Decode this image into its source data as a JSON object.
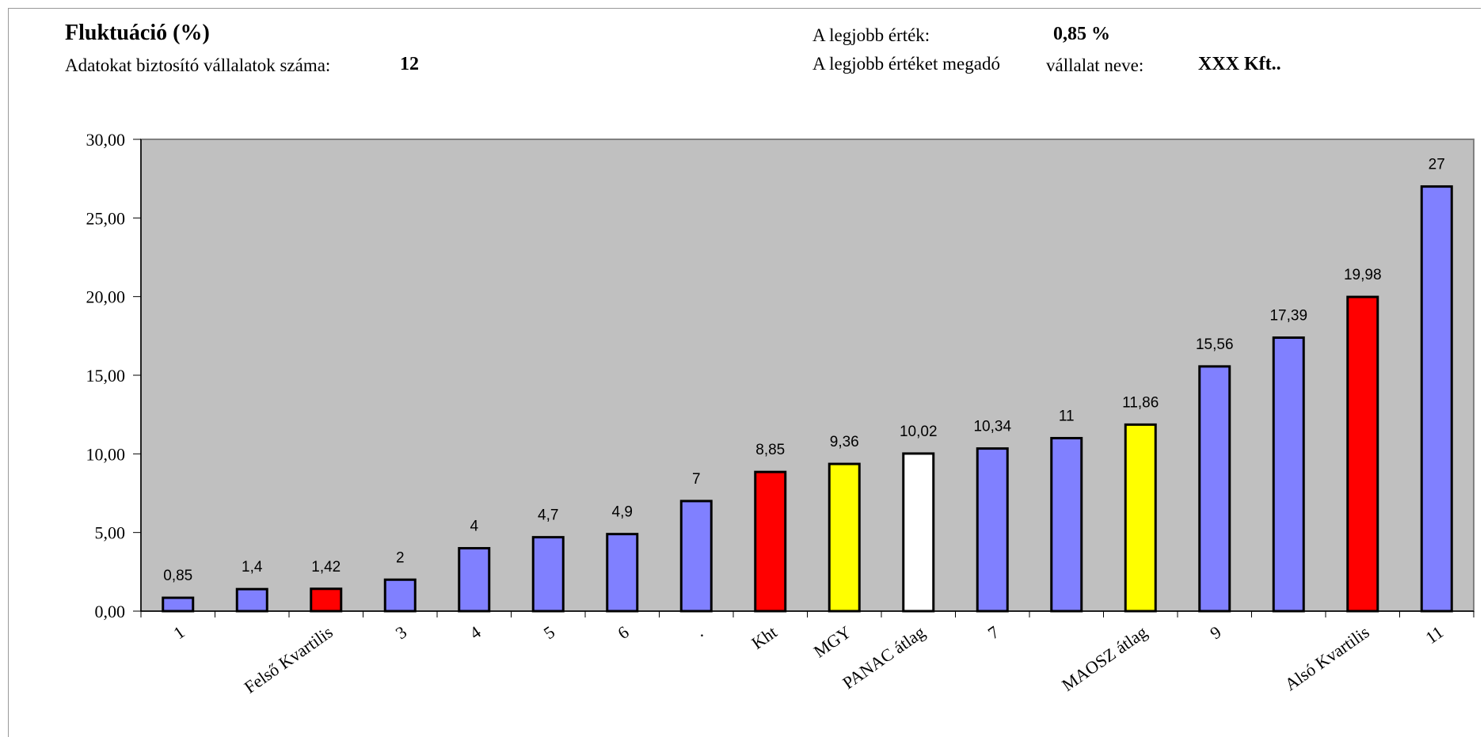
{
  "header": {
    "title": "Fluktuáció (%)",
    "companies_label": "Adatokat biztosító vállalatok száma:",
    "companies_value": "12",
    "best_value_label": "A legjobb érték:",
    "best_value": "0,85 %",
    "best_company_label_1": "A legjobb értéket megadó",
    "best_company_label_2": "vállalat neve:",
    "best_company": "XXX Kft.."
  },
  "chart_data": {
    "type": "bar",
    "ylim": [
      0,
      30
    ],
    "y_ticks": [
      "0,00",
      "5,00",
      "10,00",
      "15,00",
      "20,00",
      "25,00",
      "30,00"
    ],
    "grid": false,
    "plot_background": "#c0c0c0",
    "categories": [
      "1",
      "",
      "Felső Kvartilis",
      "3",
      "4",
      "5",
      "6",
      ".",
      "Kht",
      "MGY",
      "PANAC átlag",
      "7",
      "",
      "MAOSZ átlag",
      "9",
      "",
      "Alsó Kvartilis",
      "11"
    ],
    "values": [
      0.85,
      1.4,
      1.42,
      2,
      4,
      4.7,
      4.9,
      7,
      8.85,
      9.36,
      10.02,
      10.34,
      11,
      11.86,
      15.56,
      17.39,
      19.98,
      27
    ],
    "value_labels": [
      "0,85",
      "1,4",
      "1,42",
      "2",
      "4",
      "4,7",
      "4,9",
      "7",
      "8,85",
      "9,36",
      "10,02",
      "10,34",
      "11",
      "11,86",
      "15,56",
      "17,39",
      "19,98",
      "27"
    ],
    "bar_colors": [
      "#8080ff",
      "#8080ff",
      "#ff0000",
      "#8080ff",
      "#8080ff",
      "#8080ff",
      "#8080ff",
      "#8080ff",
      "#ff0000",
      "#ffff00",
      "#ffffff",
      "#8080ff",
      "#8080ff",
      "#ffff00",
      "#8080ff",
      "#8080ff",
      "#ff0000",
      "#8080ff"
    ]
  }
}
